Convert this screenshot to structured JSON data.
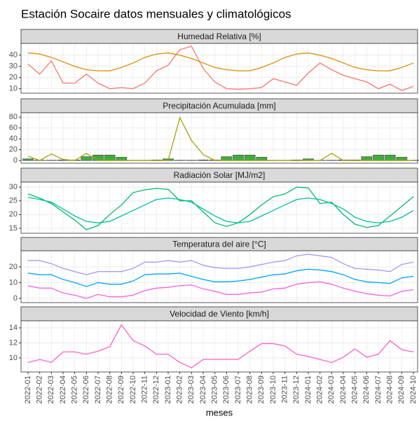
{
  "title": "Estación Socaire datos mensuales y climatológicos",
  "xlabel": "meses",
  "chart_data": [
    {
      "type": "line",
      "title": "Humedad Relativa [%]",
      "categories": [
        "2022-01",
        "2022-02",
        "2022-03",
        "2022-04",
        "2022-05",
        "2022-06",
        "2022-07",
        "2022-08",
        "2022-09",
        "2022-10",
        "2022-11",
        "2022-12",
        "2023-01",
        "2023-02",
        "2023-03",
        "2023-04",
        "2023-05",
        "2023-06",
        "2023-07",
        "2023-08",
        "2023-09",
        "2023-10",
        "2023-11",
        "2023-12",
        "2024-01",
        "2024-02",
        "2024-03",
        "2024-04",
        "2024-05",
        "2024-06",
        "2024-07",
        "2024-08",
        "2024-09",
        "2024-10"
      ],
      "ylim": [
        6,
        50.5
      ],
      "yticks": [
        10,
        20,
        30,
        40
      ],
      "grid": true,
      "series": [
        {
          "color": "#f8766d",
          "values": [
            32,
            23,
            35,
            15,
            15,
            23,
            15,
            10,
            11,
            10,
            15,
            26,
            31,
            45,
            48,
            28,
            16,
            10,
            9.5,
            10,
            11,
            19,
            16,
            13,
            24,
            33,
            27,
            22,
            19,
            16,
            10,
            14,
            8.5,
            12
          ]
        },
        {
          "color": "#de8c00",
          "values": [
            42,
            41,
            38,
            34,
            30,
            27,
            26,
            26,
            29,
            33,
            38,
            41,
            42,
            40,
            37,
            33,
            29,
            27,
            26,
            26,
            29,
            33,
            38,
            41,
            42,
            40,
            37,
            33,
            29,
            27,
            26,
            26,
            29,
            33
          ]
        }
      ]
    },
    {
      "type": "line",
      "title": "Precipitación Acumulada [mm]",
      "categories": [
        "2022-01",
        "2022-02",
        "2022-03",
        "2022-04",
        "2022-05",
        "2022-06",
        "2022-07",
        "2022-08",
        "2022-09",
        "2022-10",
        "2022-11",
        "2022-12",
        "2023-01",
        "2023-02",
        "2023-03",
        "2023-04",
        "2023-05",
        "2023-06",
        "2023-07",
        "2023-08",
        "2023-09",
        "2023-10",
        "2023-11",
        "2023-12",
        "2024-01",
        "2024-02",
        "2024-03",
        "2024-04",
        "2024-05",
        "2024-06",
        "2024-07",
        "2024-08",
        "2024-09",
        "2024-10"
      ],
      "ylim": [
        -5,
        88
      ],
      "yticks": [
        0,
        20,
        40,
        60,
        80
      ],
      "grid": true,
      "series": [
        {
          "type": "bar",
          "color": "#3cae3c",
          "values": [
            3,
            0.5,
            0.5,
            1,
            1,
            7,
            10,
            10,
            6,
            0.5,
            0.5,
            1,
            3,
            0.5,
            0.5,
            1,
            1,
            7,
            10,
            10,
            6,
            0.5,
            0.5,
            1,
            3,
            0.5,
            0.5,
            1,
            1,
            7,
            10,
            10,
            6,
            0.5
          ]
        },
        {
          "type": "line",
          "color": "#a3a500",
          "values": [
            8,
            0,
            12,
            2,
            0,
            13,
            0,
            0,
            0,
            0,
            0,
            0,
            0,
            79,
            37,
            11,
            0,
            0,
            0,
            0,
            0,
            0,
            0,
            0,
            0,
            0,
            13,
            0,
            0,
            0,
            0,
            0,
            0,
            0
          ]
        }
      ]
    },
    {
      "type": "line",
      "title": "Radiación Solar [MJ/m2]",
      "categories": [
        "2022-01",
        "2022-02",
        "2022-03",
        "2022-04",
        "2022-05",
        "2022-06",
        "2022-07",
        "2022-08",
        "2022-09",
        "2022-10",
        "2022-11",
        "2022-12",
        "2023-01",
        "2023-02",
        "2023-03",
        "2023-04",
        "2023-05",
        "2023-06",
        "2023-07",
        "2023-08",
        "2023-09",
        "2023-10",
        "2023-11",
        "2023-12",
        "2024-01",
        "2024-02",
        "2024-03",
        "2024-04",
        "2024-05",
        "2024-06",
        "2024-07",
        "2024-08",
        "2024-09",
        "2024-10"
      ],
      "ylim": [
        13.2,
        31.8
      ],
      "yticks": [
        15,
        20,
        25,
        30
      ],
      "grid": true,
      "series": [
        {
          "color": "#00b96a",
          "values": [
            27.5,
            26,
            24,
            21,
            18,
            14.5,
            16,
            20,
            23.5,
            28,
            29,
            29.5,
            29.2,
            25,
            25,
            21,
            17,
            15.7,
            17,
            20,
            23.5,
            26.5,
            27.5,
            30,
            29.7,
            24,
            24.5,
            20,
            16.5,
            15.3,
            16,
            19.5,
            23,
            26.5
          ]
        },
        {
          "color": "#00bfa0",
          "values": [
            26.3,
            25.5,
            24.5,
            22,
            19.5,
            17.5,
            17,
            17.5,
            19.5,
            21.5,
            23.5,
            25.5,
            26,
            25.5,
            24.5,
            22,
            19.5,
            17.5,
            17,
            17.5,
            19.5,
            21.5,
            23.5,
            25.5,
            26,
            25.5,
            24,
            22,
            19,
            17.5,
            17,
            17.5,
            19,
            21.5
          ]
        }
      ]
    },
    {
      "type": "line",
      "title": "Temperatura del aire [°C]",
      "categories": [
        "2022-01",
        "2022-02",
        "2022-03",
        "2022-04",
        "2022-05",
        "2022-06",
        "2022-07",
        "2022-08",
        "2022-09",
        "2022-10",
        "2022-11",
        "2022-12",
        "2023-01",
        "2023-02",
        "2023-03",
        "2023-04",
        "2023-05",
        "2023-06",
        "2023-07",
        "2023-08",
        "2023-09",
        "2023-10",
        "2023-11",
        "2023-12",
        "2024-01",
        "2024-02",
        "2024-03",
        "2024-04",
        "2024-05",
        "2024-06",
        "2024-07",
        "2024-08",
        "2024-09",
        "2024-10"
      ],
      "ylim": [
        -2.7,
        30.2
      ],
      "yticks": [
        0,
        10,
        20
      ],
      "grid": true,
      "series": [
        {
          "color": "#a39df2",
          "values": [
            24,
            24,
            22,
            19,
            17,
            15,
            17,
            17,
            17,
            19,
            23,
            23,
            24,
            23,
            24,
            21,
            19.5,
            19,
            19,
            20,
            21.5,
            23,
            24,
            27,
            28,
            27,
            26,
            22,
            19,
            18.5,
            18,
            17,
            21.5,
            23
          ]
        },
        {
          "color": "#00a9ff",
          "values": [
            16,
            15,
            15,
            12,
            10,
            7.5,
            10,
            9,
            9,
            11,
            15,
            15.5,
            15.5,
            16,
            14,
            12,
            10.5,
            10.5,
            11,
            12,
            13.5,
            15,
            15.5,
            17.5,
            18.5,
            18,
            17,
            15,
            12,
            10.5,
            10,
            9.5,
            13,
            14
          ]
        },
        {
          "color": "#f564e3",
          "values": [
            8,
            6.5,
            6.5,
            3.5,
            2,
            0,
            2.5,
            1,
            1,
            2,
            5,
            6.5,
            7,
            8,
            8.5,
            6,
            4.5,
            2.5,
            2.5,
            3.5,
            4,
            6,
            6.5,
            9,
            10,
            10.5,
            9,
            6.5,
            4.5,
            3,
            2,
            1.5,
            4.5,
            5.5
          ]
        }
      ]
    },
    {
      "type": "line",
      "title": "Velocidad de Viento [km/h]",
      "categories": [
        "2022-01",
        "2022-02",
        "2022-03",
        "2022-04",
        "2022-05",
        "2022-06",
        "2022-07",
        "2022-08",
        "2022-09",
        "2022-10",
        "2022-11",
        "2022-12",
        "2023-01",
        "2023-02",
        "2023-03",
        "2023-04",
        "2023-05",
        "2023-06",
        "2023-07",
        "2023-08",
        "2023-09",
        "2023-10",
        "2023-11",
        "2023-12",
        "2024-01",
        "2024-02",
        "2024-03",
        "2024-04",
        "2024-05",
        "2024-06",
        "2024-07",
        "2024-08",
        "2024-09",
        "2024-10"
      ],
      "ylim": [
        8.14,
        14.93
      ],
      "yticks": [
        10,
        12,
        14
      ],
      "grid": true,
      "series": [
        {
          "color": "#ff61c3",
          "values": [
            9.4,
            9.8,
            9.4,
            10.8,
            10.8,
            10.5,
            10.9,
            11.5,
            14.4,
            12.3,
            11.6,
            10.5,
            10.5,
            9.4,
            8.7,
            9.8,
            9.8,
            9.8,
            9.8,
            10.9,
            11.9,
            11.9,
            11.6,
            10.5,
            10.2,
            9.8,
            9.4,
            10.1,
            11.2,
            10.1,
            10.5,
            12.3,
            11.1,
            10.8
          ]
        }
      ]
    }
  ]
}
